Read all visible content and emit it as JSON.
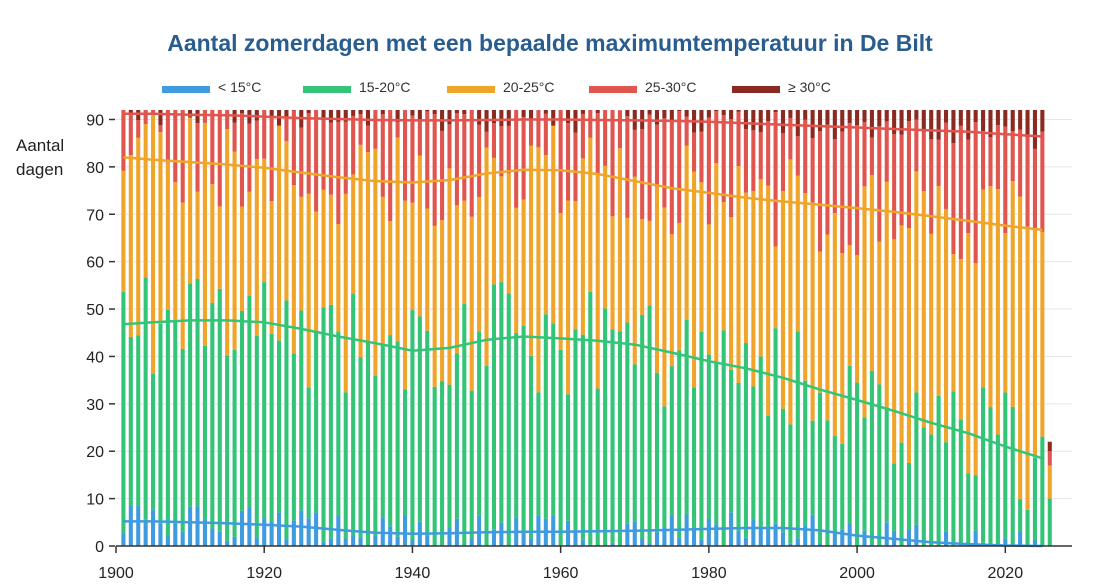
{
  "chart_data": {
    "type": "bar",
    "stacked": true,
    "title": "Aantal zomerdagen met een bepaalde maximumtemperatuur in De Bilt",
    "ylabel_line1": "Aantal",
    "ylabel_line2": "dagen",
    "xlabel": "",
    "xlim": [
      1901,
      2026
    ],
    "ylim": [
      0,
      92
    ],
    "x_ticks": [
      1900,
      1920,
      1940,
      1960,
      1980,
      2000,
      2020
    ],
    "y_ticks": [
      0,
      10,
      20,
      30,
      40,
      50,
      60,
      70,
      80,
      90
    ],
    "grid": "horizontal",
    "legend_position": "top",
    "colors": {
      "lt15": "#3e9be0",
      "15to20": "#33c477",
      "20to25": "#f0a52a",
      "25to30": "#e0554e",
      "ge30": "#8a2a20"
    },
    "legend": [
      {
        "key": "lt15",
        "label": "< 15°C"
      },
      {
        "key": "15to20",
        "label": "15-20°C"
      },
      {
        "key": "20to25",
        "label": "20-25°C"
      },
      {
        "key": "25to30",
        "label": "25-30°C"
      },
      {
        "key": "ge30",
        "label": "≥ 30°C"
      }
    ],
    "cumulative_series": [
      {
        "key": "lt15",
        "x": [
          1901,
          1905,
          1910,
          1915,
          1920,
          1925,
          1930,
          1935,
          1940,
          1945,
          1950,
          1955,
          1960,
          1965,
          1970,
          1975,
          1980,
          1985,
          1990,
          1995,
          2000,
          2005,
          2010,
          2015,
          2020,
          2025
        ],
        "values": [
          5.2,
          5.2,
          5.0,
          4.8,
          4.5,
          4.1,
          3.4,
          2.8,
          2.6,
          2.7,
          2.9,
          3.0,
          3.0,
          3.1,
          3.2,
          3.4,
          3.6,
          3.8,
          3.8,
          3.3,
          2.2,
          1.5,
          0.8,
          0.4,
          0.1,
          0.0
        ]
      },
      {
        "key": "15to20",
        "x": [
          1901,
          1905,
          1910,
          1915,
          1920,
          1925,
          1930,
          1935,
          1940,
          1945,
          1950,
          1955,
          1960,
          1965,
          1970,
          1975,
          1980,
          1985,
          1990,
          1995,
          2000,
          2005,
          2010,
          2015,
          2020,
          2025
        ],
        "values": [
          46.8,
          47.2,
          47.6,
          47.6,
          47.2,
          45.8,
          44.2,
          42.8,
          41.2,
          41.8,
          43.5,
          44.2,
          43.8,
          43.3,
          42.5,
          40.8,
          39.0,
          37.5,
          35.5,
          33.0,
          30.8,
          28.5,
          26.0,
          23.8,
          21.0,
          18.5
        ]
      },
      {
        "key": "20to25",
        "x": [
          1901,
          1905,
          1910,
          1915,
          1920,
          1925,
          1930,
          1935,
          1940,
          1945,
          1950,
          1955,
          1960,
          1965,
          1970,
          1975,
          1980,
          1985,
          1990,
          1995,
          2000,
          2005,
          2010,
          2015,
          2020,
          2025
        ],
        "values": [
          82.0,
          81.5,
          81.0,
          80.5,
          79.8,
          78.8,
          77.8,
          77.0,
          76.7,
          77.2,
          78.6,
          79.4,
          79.3,
          78.5,
          77.0,
          75.5,
          74.5,
          73.5,
          72.7,
          72.0,
          71.3,
          70.5,
          69.6,
          68.6,
          67.6,
          66.7
        ]
      },
      {
        "key": "25to30",
        "x": [
          1901,
          1905,
          1910,
          1915,
          1920,
          1925,
          1930,
          1935,
          1940,
          1945,
          1950,
          1955,
          1960,
          1965,
          1970,
          1975,
          1980,
          1985,
          1990,
          1995,
          2000,
          2005,
          2010,
          2015,
          2020,
          2025
        ],
        "values": [
          91.2,
          91.2,
          91.0,
          90.9,
          90.6,
          90.3,
          90.1,
          89.9,
          89.8,
          89.8,
          89.9,
          90.0,
          90.0,
          89.9,
          89.8,
          89.7,
          89.5,
          89.2,
          88.9,
          88.6,
          88.3,
          88.0,
          87.7,
          87.4,
          86.9,
          86.4
        ]
      }
    ],
    "partial_year_2026": {
      "lt15": 0,
      "15to20": 10,
      "20to25": 17,
      "25to30": 20,
      "ge30": 22
    }
  }
}
